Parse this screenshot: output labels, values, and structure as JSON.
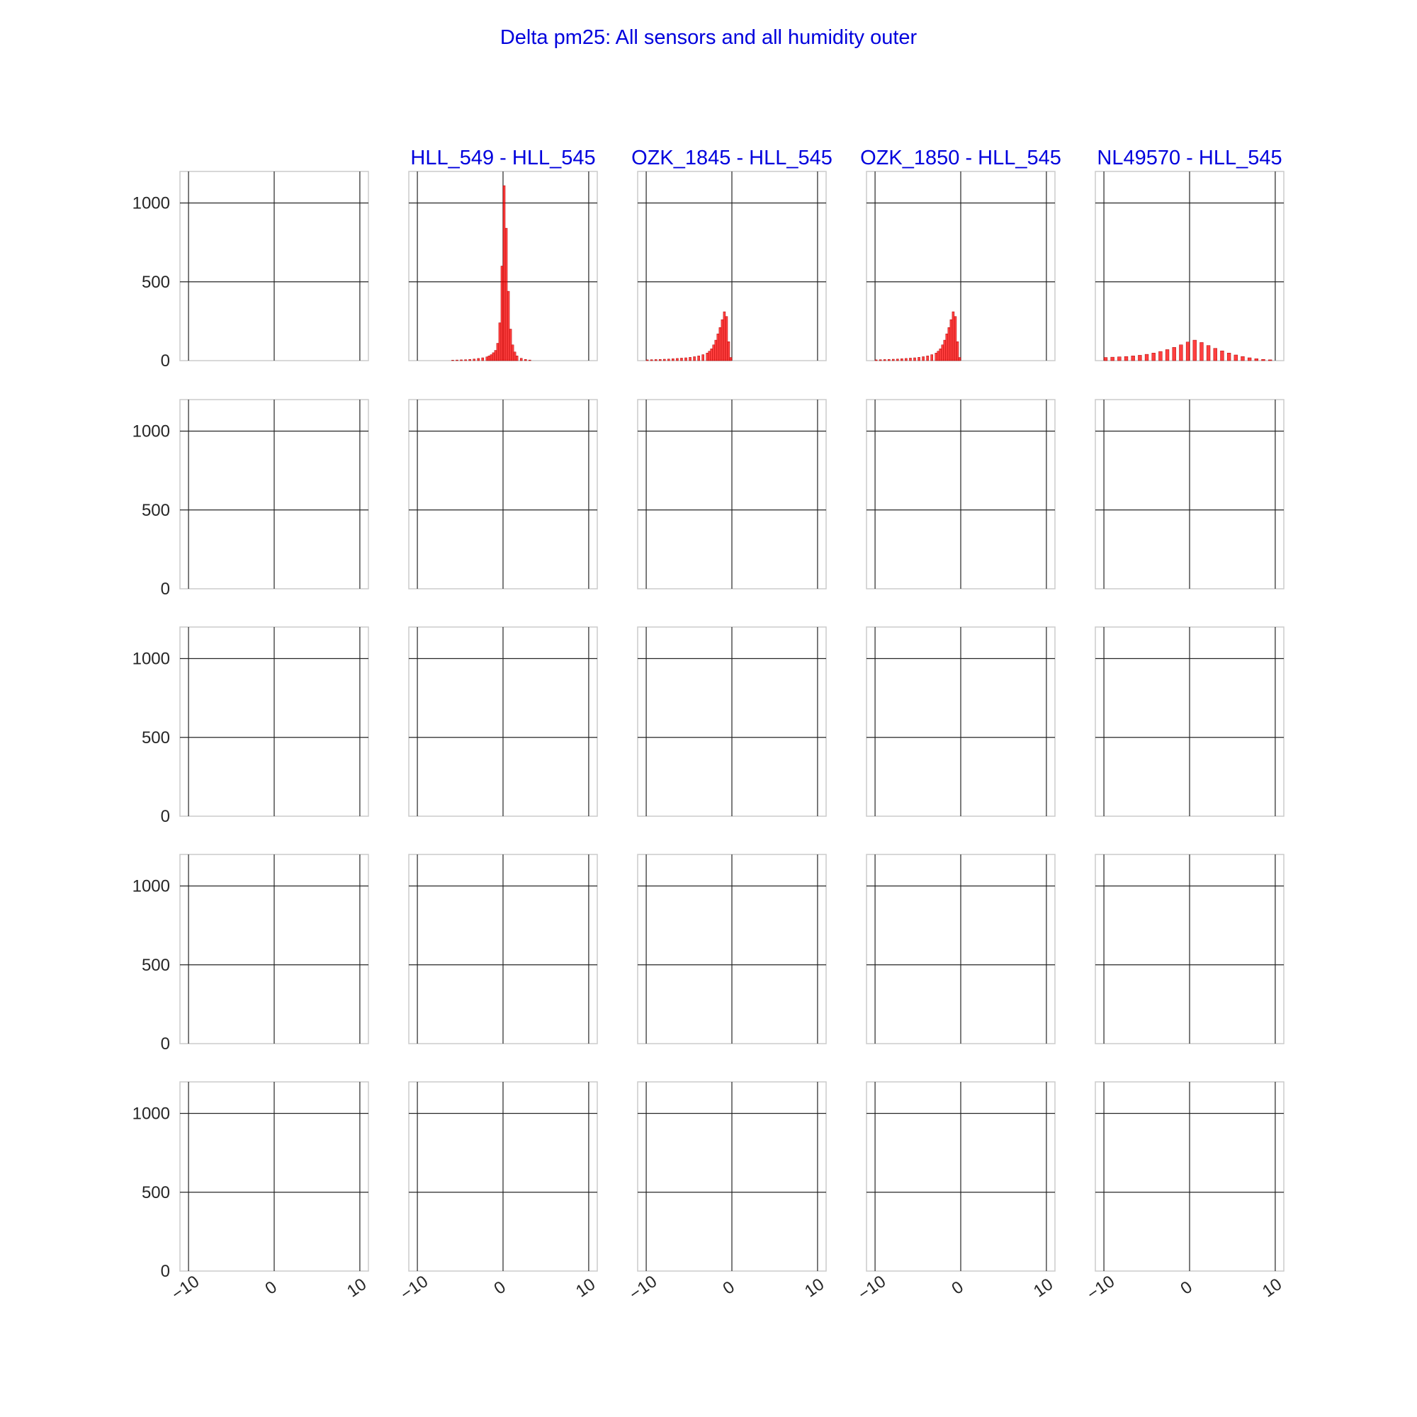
{
  "chart_data": {
    "type": "bar",
    "title": "Delta pm25: All sensors and all humidity outer",
    "xlabel": "",
    "ylabel": "",
    "xlim": [
      -11,
      11
    ],
    "ylim": [
      0,
      1200
    ],
    "x_ticks": [
      -10,
      0,
      10
    ],
    "y_ticks": [
      0,
      500,
      1000
    ],
    "grid": true,
    "rows": 5,
    "cols": 5,
    "title_color": "#0000dd",
    "bar_color": "#ff0000",
    "bar_edge_color": "#b00000",
    "panels": [
      {
        "row": 0,
        "col": 0,
        "title": "",
        "bins": []
      },
      {
        "row": 0,
        "col": 1,
        "title": "HLL_549 - HLL_545",
        "bin_width": 0.25,
        "bins": [
          {
            "x": -6.0,
            "y": 3
          },
          {
            "x": -5.5,
            "y": 4
          },
          {
            "x": -5.0,
            "y": 5
          },
          {
            "x": -4.5,
            "y": 6
          },
          {
            "x": -4.0,
            "y": 8
          },
          {
            "x": -3.5,
            "y": 10
          },
          {
            "x": -3.0,
            "y": 14
          },
          {
            "x": -2.5,
            "y": 18
          },
          {
            "x": -2.0,
            "y": 24
          },
          {
            "x": -1.75,
            "y": 30
          },
          {
            "x": -1.5,
            "y": 38
          },
          {
            "x": -1.25,
            "y": 50
          },
          {
            "x": -1.0,
            "y": 65
          },
          {
            "x": -0.75,
            "y": 110
          },
          {
            "x": -0.5,
            "y": 240
          },
          {
            "x": -0.25,
            "y": 600
          },
          {
            "x": 0.0,
            "y": 1110
          },
          {
            "x": 0.25,
            "y": 840
          },
          {
            "x": 0.5,
            "y": 440
          },
          {
            "x": 0.75,
            "y": 200
          },
          {
            "x": 1.0,
            "y": 100
          },
          {
            "x": 1.25,
            "y": 55
          },
          {
            "x": 1.5,
            "y": 30
          },
          {
            "x": 2.0,
            "y": 15
          },
          {
            "x": 2.5,
            "y": 8
          },
          {
            "x": 3.0,
            "y": 4
          }
        ]
      },
      {
        "row": 0,
        "col": 2,
        "title": "OZK_1845 - HLL_545",
        "bin_width": 0.25,
        "bins": [
          {
            "x": -10.0,
            "y": 5
          },
          {
            "x": -9.5,
            "y": 6
          },
          {
            "x": -9.0,
            "y": 7
          },
          {
            "x": -8.5,
            "y": 8
          },
          {
            "x": -8.0,
            "y": 9
          },
          {
            "x": -7.5,
            "y": 10
          },
          {
            "x": -7.0,
            "y": 12
          },
          {
            "x": -6.5,
            "y": 14
          },
          {
            "x": -6.0,
            "y": 16
          },
          {
            "x": -5.5,
            "y": 18
          },
          {
            "x": -5.0,
            "y": 21
          },
          {
            "x": -4.5,
            "y": 25
          },
          {
            "x": -4.0,
            "y": 30
          },
          {
            "x": -3.5,
            "y": 38
          },
          {
            "x": -3.0,
            "y": 48
          },
          {
            "x": -2.75,
            "y": 60
          },
          {
            "x": -2.5,
            "y": 75
          },
          {
            "x": -2.25,
            "y": 100
          },
          {
            "x": -2.0,
            "y": 130
          },
          {
            "x": -1.75,
            "y": 170
          },
          {
            "x": -1.5,
            "y": 210
          },
          {
            "x": -1.25,
            "y": 260
          },
          {
            "x": -1.0,
            "y": 310
          },
          {
            "x": -0.75,
            "y": 280
          },
          {
            "x": -0.5,
            "y": 120
          },
          {
            "x": -0.25,
            "y": 20
          }
        ]
      },
      {
        "row": 0,
        "col": 3,
        "title": "OZK_1850 - HLL_545",
        "bin_width": 0.25,
        "bins": [
          {
            "x": -10.0,
            "y": 5
          },
          {
            "x": -9.5,
            "y": 6
          },
          {
            "x": -9.0,
            "y": 7
          },
          {
            "x": -8.5,
            "y": 8
          },
          {
            "x": -8.0,
            "y": 9
          },
          {
            "x": -7.5,
            "y": 10
          },
          {
            "x": -7.0,
            "y": 12
          },
          {
            "x": -6.5,
            "y": 14
          },
          {
            "x": -6.0,
            "y": 16
          },
          {
            "x": -5.5,
            "y": 18
          },
          {
            "x": -5.0,
            "y": 21
          },
          {
            "x": -4.5,
            "y": 25
          },
          {
            "x": -4.0,
            "y": 30
          },
          {
            "x": -3.5,
            "y": 38
          },
          {
            "x": -3.0,
            "y": 48
          },
          {
            "x": -2.75,
            "y": 60
          },
          {
            "x": -2.5,
            "y": 75
          },
          {
            "x": -2.25,
            "y": 100
          },
          {
            "x": -2.0,
            "y": 130
          },
          {
            "x": -1.75,
            "y": 170
          },
          {
            "x": -1.5,
            "y": 210
          },
          {
            "x": -1.25,
            "y": 260
          },
          {
            "x": -1.0,
            "y": 310
          },
          {
            "x": -0.75,
            "y": 280
          },
          {
            "x": -0.5,
            "y": 120
          },
          {
            "x": -0.25,
            "y": 20
          }
        ]
      },
      {
        "row": 0,
        "col": 4,
        "title": "NL49570 - HLL_545",
        "bin_width": 0.4,
        "bins": [
          {
            "x": -10.0,
            "y": 20
          },
          {
            "x": -9.2,
            "y": 22
          },
          {
            "x": -8.4,
            "y": 24
          },
          {
            "x": -7.6,
            "y": 26
          },
          {
            "x": -6.8,
            "y": 30
          },
          {
            "x": -6.0,
            "y": 34
          },
          {
            "x": -5.2,
            "y": 40
          },
          {
            "x": -4.4,
            "y": 48
          },
          {
            "x": -3.6,
            "y": 58
          },
          {
            "x": -2.8,
            "y": 70
          },
          {
            "x": -2.0,
            "y": 84
          },
          {
            "x": -1.2,
            "y": 100
          },
          {
            "x": -0.4,
            "y": 118
          },
          {
            "x": 0.4,
            "y": 130
          },
          {
            "x": 1.2,
            "y": 115
          },
          {
            "x": 2.0,
            "y": 96
          },
          {
            "x": 2.8,
            "y": 78
          },
          {
            "x": 3.6,
            "y": 62
          },
          {
            "x": 4.4,
            "y": 48
          },
          {
            "x": 5.2,
            "y": 36
          },
          {
            "x": 6.0,
            "y": 26
          },
          {
            "x": 6.8,
            "y": 18
          },
          {
            "x": 7.6,
            "y": 12
          },
          {
            "x": 8.4,
            "y": 8
          },
          {
            "x": 9.2,
            "y": 5
          }
        ]
      },
      {
        "row": 1,
        "col": 0,
        "title": "",
        "bins": []
      },
      {
        "row": 1,
        "col": 1,
        "title": "",
        "bins": []
      },
      {
        "row": 1,
        "col": 2,
        "title": "",
        "bins": []
      },
      {
        "row": 1,
        "col": 3,
        "title": "",
        "bins": []
      },
      {
        "row": 1,
        "col": 4,
        "title": "",
        "bins": []
      },
      {
        "row": 2,
        "col": 0,
        "title": "",
        "bins": []
      },
      {
        "row": 2,
        "col": 1,
        "title": "",
        "bins": []
      },
      {
        "row": 2,
        "col": 2,
        "title": "",
        "bins": []
      },
      {
        "row": 2,
        "col": 3,
        "title": "",
        "bins": []
      },
      {
        "row": 2,
        "col": 4,
        "title": "",
        "bins": []
      },
      {
        "row": 3,
        "col": 0,
        "title": "",
        "bins": []
      },
      {
        "row": 3,
        "col": 1,
        "title": "",
        "bins": []
      },
      {
        "row": 3,
        "col": 2,
        "title": "",
        "bins": []
      },
      {
        "row": 3,
        "col": 3,
        "title": "",
        "bins": []
      },
      {
        "row": 3,
        "col": 4,
        "title": "",
        "bins": []
      },
      {
        "row": 4,
        "col": 0,
        "title": "",
        "bins": []
      },
      {
        "row": 4,
        "col": 1,
        "title": "",
        "bins": []
      },
      {
        "row": 4,
        "col": 2,
        "title": "",
        "bins": []
      },
      {
        "row": 4,
        "col": 3,
        "title": "",
        "bins": []
      },
      {
        "row": 4,
        "col": 4,
        "title": "",
        "bins": []
      }
    ]
  }
}
